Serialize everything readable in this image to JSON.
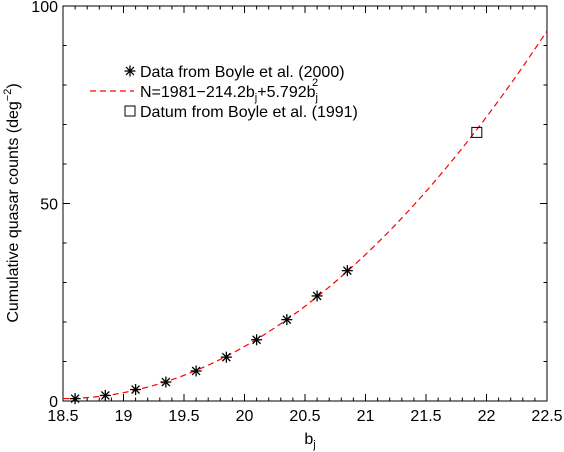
{
  "chart_data": {
    "type": "scatter",
    "xlabel_base": "b",
    "xlabel_sub": "j",
    "ylabel_main": "Cumulative quasar counts (deg",
    "ylabel_sup": "−2",
    "ylabel_end": ")",
    "xlim": [
      18.5,
      22.5
    ],
    "ylim": [
      0,
      100
    ],
    "x_ticks": [
      18.5,
      19,
      19.5,
      20,
      20.5,
      21,
      21.5,
      22,
      22.5
    ],
    "x_tick_labels": [
      "18.5",
      "19",
      "19.5",
      "20",
      "20.5",
      "21",
      "21.5",
      "22",
      "22.5"
    ],
    "y_ticks": [
      0,
      50,
      100
    ],
    "y_tick_labels": [
      "0",
      "50",
      "100"
    ],
    "legend_position": "top-left",
    "series": [
      {
        "name": "Data from Boyle et al. (2000)",
        "marker": "asterisk",
        "color": "#000000",
        "x": [
          18.6,
          18.85,
          19.1,
          19.35,
          19.6,
          19.85,
          20.1,
          20.35,
          20.6,
          20.85
        ],
        "y": [
          0.6,
          1.4,
          2.9,
          4.8,
          7.6,
          11.1,
          15.5,
          20.6,
          26.6,
          33.0
        ]
      },
      {
        "name_parts": {
          "lhs": "N=1981−214.2b",
          "sub1": "j",
          "mid": "+5.792b",
          "sub2": "j",
          "sup": "2"
        },
        "type": "line",
        "style": "dashed",
        "color": "#ff0000",
        "coefficients": [
          1981,
          -214.2,
          5.792
        ],
        "x_range": [
          18.5,
          22.5
        ]
      },
      {
        "name": "Datum from Boyle et al. (1991)",
        "marker": "square",
        "color": "#000000",
        "x": [
          21.92
        ],
        "y": [
          68.0
        ]
      }
    ]
  }
}
